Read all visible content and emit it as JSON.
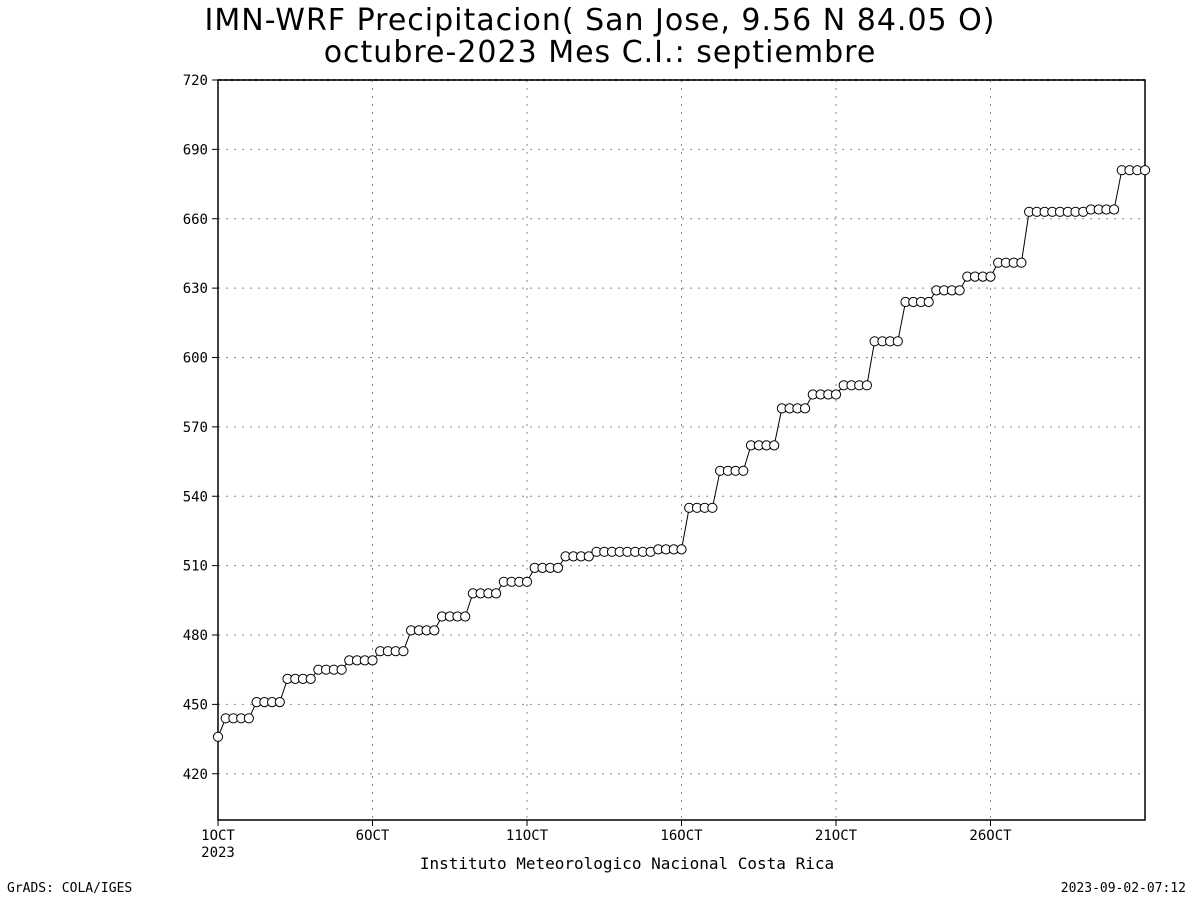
{
  "chart_data": {
    "type": "line",
    "title": "IMN-WRF  Precipitacion( San Jose, 9.56  N 84.05  O)",
    "subtitle": "octubre-2023 Mes C.I.: septiembre",
    "xlabel": "Instituto Meteorologico Nacional Costa Rica",
    "ylabel": "",
    "ylim": [
      400,
      720
    ],
    "xlim": [
      1,
      31
    ],
    "yticks": [
      420,
      450,
      480,
      510,
      540,
      570,
      600,
      630,
      660,
      690,
      720
    ],
    "xticks": [
      {
        "x": 1,
        "label": "1OCT",
        "sublabel": "2023"
      },
      {
        "x": 6,
        "label": "6OCT"
      },
      {
        "x": 11,
        "label": "11OCT"
      },
      {
        "x": 16,
        "label": "16OCT"
      },
      {
        "x": 21,
        "label": "21OCT"
      },
      {
        "x": 26,
        "label": "26OCT"
      }
    ],
    "grid": true,
    "marker": "open-circle",
    "series": [
      {
        "x": [
          1.0,
          1.25,
          1.5,
          1.75,
          2.0,
          2.25,
          2.5,
          2.75,
          3.0,
          3.25,
          3.5,
          3.75,
          4.0,
          4.25,
          4.5,
          4.75,
          5.0,
          5.25,
          5.5,
          5.75,
          6.0,
          6.25,
          6.5,
          6.75,
          7.0,
          7.25,
          7.5,
          7.75,
          8.0,
          8.25,
          8.5,
          8.75,
          9.0,
          9.25,
          9.5,
          9.75,
          10.0,
          10.25,
          10.5,
          10.75,
          11.0,
          11.25,
          11.5,
          11.75,
          12.0,
          12.25,
          12.5,
          12.75,
          13.0,
          13.25,
          13.5,
          13.75,
          14.0,
          14.25,
          14.5,
          14.75,
          15.0,
          15.25,
          15.5,
          15.75,
          16.0,
          16.25,
          16.5,
          16.75,
          17.0,
          17.25,
          17.5,
          17.75,
          18.0,
          18.25,
          18.5,
          18.75,
          19.0,
          19.25,
          19.5,
          19.75,
          20.0,
          20.25,
          20.5,
          20.75,
          21.0,
          21.25,
          21.5,
          21.75,
          22.0,
          22.25,
          22.5,
          22.75,
          23.0,
          23.25,
          23.5,
          23.75,
          24.0,
          24.25,
          24.5,
          24.75,
          25.0,
          25.25,
          25.5,
          25.75,
          26.0,
          26.25,
          26.5,
          26.75,
          27.0,
          27.25,
          27.5,
          27.75,
          28.0,
          28.25,
          28.5,
          28.75,
          29.0,
          29.25,
          29.5,
          29.75,
          30.0,
          30.25,
          30.5,
          30.75,
          31.0
        ],
        "y": [
          436,
          444,
          444,
          444,
          444,
          451,
          451,
          451,
          451,
          461,
          461,
          461,
          461,
          465,
          465,
          465,
          465,
          469,
          469,
          469,
          469,
          473,
          473,
          473,
          473,
          482,
          482,
          482,
          482,
          488,
          488,
          488,
          488,
          498,
          498,
          498,
          498,
          503,
          503,
          503,
          503,
          509,
          509,
          509,
          509,
          514,
          514,
          514,
          514,
          516,
          516,
          516,
          516,
          516,
          516,
          516,
          516,
          517,
          517,
          517,
          517,
          535,
          535,
          535,
          535,
          551,
          551,
          551,
          551,
          562,
          562,
          562,
          562,
          578,
          578,
          578,
          578,
          584,
          584,
          584,
          584,
          588,
          588,
          588,
          588,
          607,
          607,
          607,
          607,
          624,
          624,
          624,
          624,
          629,
          629,
          629,
          629,
          635,
          635,
          635,
          635,
          641,
          641,
          641,
          641,
          663,
          663,
          663,
          663,
          663,
          663,
          663,
          663,
          664,
          664,
          664,
          664,
          681,
          681,
          681,
          681
        ]
      }
    ]
  },
  "footer": {
    "left": "GrADS: COLA/IGES",
    "right": "2023-09-02-07:12"
  }
}
